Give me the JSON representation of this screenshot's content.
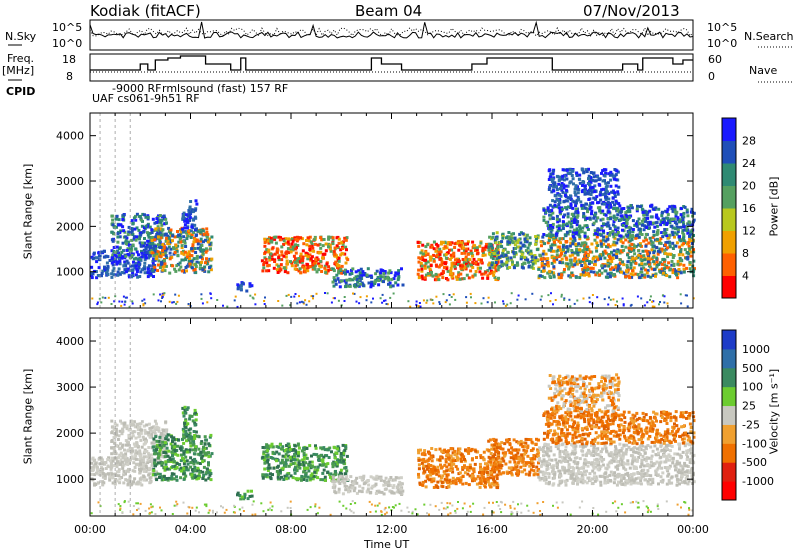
{
  "header": {
    "radar": "Kodiak (fitACF)",
    "beam": "Beam 04",
    "date": "07/Nov/2013"
  },
  "top_labels": {
    "nsky": "N.Sky",
    "nsearch": "N.Search",
    "freq": "Freq.",
    "mhz": "[MHz]",
    "nave": "Nave",
    "cpid": "CPID",
    "nsky_hi": "10^5",
    "nsky_lo": "10^0",
    "nsearch_hi": "10^5",
    "nsearch_lo": "10^0",
    "freq_hi": "18",
    "freq_lo": "8",
    "nave_hi": "60",
    "nave_lo": "0"
  },
  "cpid_texts": [
    "-9000 RF",
    "rmlsound (fast) 157 RF",
    "UAF cs061-9h51 RF"
  ],
  "chart_data": [
    {
      "type": "heatmap",
      "name": "power",
      "ylabel": "Slant Range [km]",
      "yticks": [
        1000,
        2000,
        3000,
        4000
      ],
      "ylim": [
        200,
        4500
      ],
      "xlabel": "Time UT",
      "xticks": [
        "00:00",
        "04:00",
        "08:00",
        "12:00",
        "16:00",
        "20:00",
        "00:00"
      ],
      "xlim_hours": [
        0,
        24
      ],
      "colorbar_label": "Power [dB]",
      "colorbar_ticks": [
        "4",
        "8",
        "12",
        "16",
        "20",
        "24",
        "28"
      ],
      "colorbar_colors": [
        "#1a1aff",
        "#1f4fb8",
        "#2f8a73",
        "#55a060",
        "#b8c81e",
        "#f0a000",
        "#ff6000",
        "#ff0000"
      ]
    },
    {
      "type": "heatmap",
      "name": "velocity",
      "ylabel": "Slant Range [km]",
      "yticks": [
        1000,
        2000,
        3000,
        4000
      ],
      "ylim": [
        200,
        4500
      ],
      "colorbar_label": "Velocity [m s⁻¹]",
      "colorbar_ticks": [
        "1000",
        "500",
        "100",
        "25",
        "-25",
        "-100",
        "-500",
        "-1000"
      ],
      "colorbar_colors": [
        "#1e3cc8",
        "#2f6fa8",
        "#3a8a60",
        "#6ccc30",
        "#c8c8c0",
        "#f0a030",
        "#f07000",
        "#e02010",
        "#ff0000"
      ]
    }
  ],
  "blobs": [
    {
      "t0": 0.0,
      "t1": 2.6,
      "r0": 900,
      "r1": 1500,
      "p": "blue",
      "v": "gray"
    },
    {
      "t0": 0.8,
      "t1": 3.0,
      "r0": 1300,
      "r1": 2300,
      "p": "bluegreen",
      "v": "gray"
    },
    {
      "t0": 2.4,
      "t1": 4.8,
      "r0": 1000,
      "r1": 2000,
      "p": "greenorange",
      "v": "green"
    },
    {
      "t0": 3.6,
      "t1": 4.2,
      "r0": 1900,
      "r1": 2600,
      "p": "blue",
      "v": "green"
    },
    {
      "t0": 5.8,
      "t1": 6.4,
      "r0": 600,
      "r1": 800,
      "p": "blue",
      "v": "green"
    },
    {
      "t0": 6.8,
      "t1": 10.2,
      "r0": 1000,
      "r1": 1800,
      "p": "red",
      "v": "green"
    },
    {
      "t0": 9.6,
      "t1": 12.4,
      "r0": 700,
      "r1": 1100,
      "p": "bluegreen",
      "v": "gray"
    },
    {
      "t0": 13.0,
      "t1": 16.2,
      "r0": 850,
      "r1": 1700,
      "p": "red",
      "v": "orange"
    },
    {
      "t0": 15.8,
      "t1": 17.8,
      "r0": 1100,
      "r1": 1900,
      "p": "green",
      "v": "orange"
    },
    {
      "t0": 17.8,
      "t1": 24.0,
      "r0": 900,
      "r1": 1800,
      "p": "greenorange",
      "v": "gray"
    },
    {
      "t0": 18.0,
      "t1": 24.0,
      "r0": 1800,
      "r1": 2500,
      "p": "bluegreen",
      "v": "orange"
    },
    {
      "t0": 18.2,
      "t1": 21.0,
      "r0": 2500,
      "r1": 3300,
      "p": "blue",
      "v": "grayorange"
    }
  ]
}
